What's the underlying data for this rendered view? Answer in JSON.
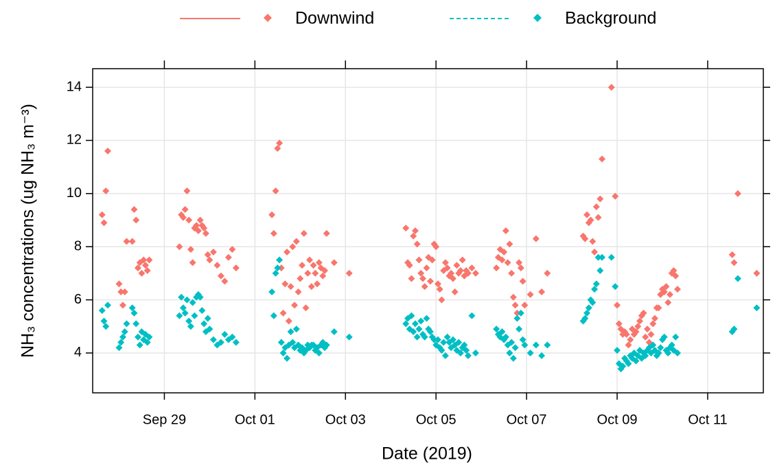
{
  "chart_data": {
    "type": "scatter",
    "xlabel": "Date (2019)",
    "ylabel": "NH₃ concentrations (ug NH₃ m⁻³)",
    "x": [
      "2019-09-27T15:00",
      "2019-09-27T16:00",
      "2019-09-27T17:00",
      "2019-09-27T18:00",
      "2019-09-28T00:00",
      "2019-09-28T01:00",
      "2019-09-28T02:00",
      "2019-09-28T03:00",
      "2019-09-28T04:00",
      "2019-09-28T07:00",
      "2019-09-28T08:00",
      "2019-09-28T09:00",
      "2019-09-28T10:00",
      "2019-09-28T11:00",
      "2019-09-28T12:00",
      "2019-09-28T13:00",
      "2019-09-28T14:00",
      "2019-09-28T15:00",
      "2019-09-28T16:00",
      "2019-09-29T08:00",
      "2019-09-29T09:00",
      "2019-09-29T10:00",
      "2019-09-29T11:00",
      "2019-09-29T12:00",
      "2019-09-29T13:00",
      "2019-09-29T14:00",
      "2019-09-29T15:00",
      "2019-09-29T16:00",
      "2019-09-29T17:00",
      "2019-09-29T18:00",
      "2019-09-29T19:00",
      "2019-09-29T20:00",
      "2019-09-29T21:00",
      "2019-09-29T22:00",
      "2019-09-29T23:00",
      "2019-09-30T00:00",
      "2019-09-30T02:00",
      "2019-09-30T04:00",
      "2019-09-30T06:00",
      "2019-09-30T08:00",
      "2019-09-30T10:00",
      "2019-09-30T12:00",
      "2019-09-30T14:00",
      "2019-10-01T09:00",
      "2019-10-01T10:00",
      "2019-10-01T11:00",
      "2019-10-01T12:00",
      "2019-10-01T13:00",
      "2019-10-01T14:00",
      "2019-10-01T15:00",
      "2019-10-01T16:00",
      "2019-10-01T17:00",
      "2019-10-01T18:00",
      "2019-10-01T19:00",
      "2019-10-01T20:00",
      "2019-10-01T21:00",
      "2019-10-01T22:00",
      "2019-10-01T23:00",
      "2019-10-02T00:00",
      "2019-10-02T01:00",
      "2019-10-02T02:00",
      "2019-10-02T03:00",
      "2019-10-02T04:00",
      "2019-10-02T05:00",
      "2019-10-02T06:00",
      "2019-10-02T07:00",
      "2019-10-02T08:00",
      "2019-10-02T09:00",
      "2019-10-02T10:00",
      "2019-10-02T11:00",
      "2019-10-02T12:00",
      "2019-10-02T13:00",
      "2019-10-02T14:00",
      "2019-10-02T18:00",
      "2019-10-03T02:00",
      "2019-10-04T08:00",
      "2019-10-04T09:00",
      "2019-10-04T10:00",
      "2019-10-04T11:00",
      "2019-10-04T12:00",
      "2019-10-04T13:00",
      "2019-10-04T14:00",
      "2019-10-04T15:00",
      "2019-10-04T16:00",
      "2019-10-04T17:00",
      "2019-10-04T18:00",
      "2019-10-04T19:00",
      "2019-10-04T20:00",
      "2019-10-04T21:00",
      "2019-10-04T22:00",
      "2019-10-04T23:00",
      "2019-10-05T00:00",
      "2019-10-05T01:00",
      "2019-10-05T02:00",
      "2019-10-05T03:00",
      "2019-10-05T04:00",
      "2019-10-05T05:00",
      "2019-10-05T06:00",
      "2019-10-05T07:00",
      "2019-10-05T08:00",
      "2019-10-05T09:00",
      "2019-10-05T10:00",
      "2019-10-05T11:00",
      "2019-10-05T12:00",
      "2019-10-05T13:00",
      "2019-10-05T14:00",
      "2019-10-05T15:00",
      "2019-10-05T16:00",
      "2019-10-05T17:00",
      "2019-10-05T19:00",
      "2019-10-05T21:00",
      "2019-10-06T08:00",
      "2019-10-06T09:00",
      "2019-10-06T10:00",
      "2019-10-06T11:00",
      "2019-10-06T12:00",
      "2019-10-06T13:00",
      "2019-10-06T14:00",
      "2019-10-06T15:00",
      "2019-10-06T16:00",
      "2019-10-06T17:00",
      "2019-10-06T18:00",
      "2019-10-06T19:00",
      "2019-10-06T20:00",
      "2019-10-06T21:00",
      "2019-10-06T22:00",
      "2019-10-06T23:00",
      "2019-10-07T02:00",
      "2019-10-07T05:00",
      "2019-10-07T08:00",
      "2019-10-07T11:00",
      "2019-10-08T06:00",
      "2019-10-08T07:00",
      "2019-10-08T08:00",
      "2019-10-08T09:00",
      "2019-10-08T10:00",
      "2019-10-08T11:00",
      "2019-10-08T12:00",
      "2019-10-08T13:00",
      "2019-10-08T14:00",
      "2019-10-08T15:00",
      "2019-10-08T16:00",
      "2019-10-08T21:00",
      "2019-10-08T23:00",
      "2019-10-09T00:00",
      "2019-10-09T01:00",
      "2019-10-09T02:00",
      "2019-10-09T03:00",
      "2019-10-09T04:00",
      "2019-10-09T05:00",
      "2019-10-09T06:00",
      "2019-10-09T07:00",
      "2019-10-09T08:00",
      "2019-10-09T09:00",
      "2019-10-09T10:00",
      "2019-10-09T11:00",
      "2019-10-09T12:00",
      "2019-10-09T13:00",
      "2019-10-09T14:00",
      "2019-10-09T15:00",
      "2019-10-09T16:00",
      "2019-10-09T17:00",
      "2019-10-09T18:00",
      "2019-10-09T19:00",
      "2019-10-09T20:00",
      "2019-10-09T21:00",
      "2019-10-09T22:00",
      "2019-10-09T23:00",
      "2019-10-10T00:00",
      "2019-10-10T01:00",
      "2019-10-10T02:00",
      "2019-10-10T03:00",
      "2019-10-10T04:00",
      "2019-10-10T05:00",
      "2019-10-10T06:00",
      "2019-10-10T07:00",
      "2019-10-10T08:00",
      "2019-10-11T13:00",
      "2019-10-11T14:00",
      "2019-10-11T16:00",
      "2019-10-12T02:00"
    ],
    "series": [
      {
        "name": "Downwind",
        "color": "#F8766D",
        "line_style": "solid",
        "values": [
          9.2,
          8.9,
          10.1,
          11.6,
          6.6,
          6.3,
          5.8,
          6.3,
          8.2,
          8.2,
          9.4,
          9.0,
          7.2,
          7.4,
          7.0,
          7.5,
          7.3,
          7.1,
          7.5,
          8.0,
          9.2,
          9.1,
          9.4,
          10.1,
          9.0,
          7.9,
          7.4,
          8.7,
          8.8,
          8.6,
          9.0,
          8.8,
          8.7,
          8.5,
          7.7,
          7.5,
          7.8,
          7.3,
          6.9,
          6.7,
          7.6,
          7.9,
          7.2,
          9.2,
          8.5,
          10.1,
          11.7,
          11.9,
          7.2,
          5.5,
          6.6,
          7.8,
          5.2,
          6.5,
          8.0,
          5.8,
          8.2,
          6.3,
          6.8,
          7.3,
          8.5,
          5.7,
          7.0,
          7.5,
          6.5,
          7.3,
          7.0,
          6.6,
          7.4,
          7.2,
          6.9,
          7.1,
          8.5,
          7.4,
          7.0,
          8.7,
          7.4,
          7.3,
          6.8,
          8.4,
          8.6,
          8.1,
          7.5,
          7.0,
          6.8,
          6.5,
          7.2,
          7.6,
          6.7,
          7.5,
          8.1,
          8.0,
          6.6,
          6.4,
          6.0,
          7.1,
          7.4,
          7.2,
          6.9,
          7.0,
          6.8,
          6.3,
          7.3,
          7.0,
          7.1,
          7.5,
          6.9,
          7.1,
          7.0,
          7.2,
          7.0,
          7.2,
          7.6,
          7.9,
          7.5,
          7.8,
          8.6,
          7.4,
          8.1,
          7.0,
          6.1,
          5.8,
          5.5,
          7.4,
          7.2,
          6.7,
          5.8,
          6.2,
          8.3,
          6.3,
          7.0,
          8.4,
          8.3,
          9.2,
          8.9,
          9.0,
          8.2,
          7.8,
          9.5,
          9.1,
          9.8,
          11.3,
          14.0,
          9.9,
          5.8,
          5.1,
          4.9,
          4.7,
          4.8,
          4.7,
          4.3,
          4.5,
          4.9,
          4.7,
          4.8,
          5.0,
          5.2,
          5.4,
          5.5,
          4.6,
          4.9,
          4.4,
          4.7,
          5.1,
          5.3,
          5.7,
          5.7,
          6.2,
          6.4,
          6.3,
          6.5,
          5.9,
          6.2,
          7.0,
          7.1,
          6.9,
          6.4,
          7.7,
          7.4,
          10.0,
          7.0
        ]
      },
      {
        "name": "Background",
        "color": "#00BFC4",
        "line_style": "dashed",
        "values": [
          5.6,
          5.2,
          5.0,
          5.8,
          4.2,
          4.4,
          4.6,
          4.8,
          5.1,
          5.7,
          5.5,
          5.1,
          4.6,
          4.3,
          4.8,
          4.5,
          4.7,
          4.4,
          4.6,
          5.4,
          6.1,
          5.7,
          5.5,
          6.0,
          5.2,
          5.0,
          5.9,
          5.4,
          6.1,
          6.2,
          6.1,
          5.6,
          5.1,
          4.8,
          5.3,
          4.9,
          4.5,
          4.3,
          4.4,
          4.7,
          4.5,
          4.6,
          4.4,
          6.3,
          5.4,
          7.0,
          7.2,
          7.5,
          4.4,
          4.0,
          4.2,
          3.8,
          4.3,
          4.8,
          4.4,
          4.2,
          4.9,
          4.3,
          4.1,
          4.2,
          4.0,
          4.1,
          4.3,
          4.2,
          4.3,
          4.3,
          4.1,
          4.2,
          4.0,
          4.3,
          4.4,
          4.2,
          4.3,
          4.8,
          4.6,
          5.1,
          5.3,
          4.9,
          5.4,
          4.8,
          5.1,
          4.6,
          4.9,
          5.2,
          4.7,
          4.6,
          5.3,
          4.9,
          4.8,
          4.6,
          4.5,
          4.3,
          4.5,
          4.2,
          4.1,
          4.4,
          3.9,
          4.6,
          4.4,
          4.2,
          4.5,
          4.3,
          4.1,
          4.4,
          4.0,
          4.2,
          4.3,
          4.1,
          3.9,
          5.4,
          4.0,
          4.9,
          4.7,
          4.6,
          4.8,
          4.5,
          4.6,
          4.3,
          4.0,
          4.4,
          3.8,
          4.2,
          5.3,
          4.9,
          5.5,
          4.5,
          4.3,
          4.0,
          4.3,
          3.9,
          4.3,
          5.2,
          5.3,
          5.5,
          5.7,
          6.0,
          5.9,
          6.4,
          6.6,
          7.6,
          7.1,
          7.6,
          7.6,
          6.5,
          4.1,
          3.6,
          3.4,
          3.5,
          3.8,
          3.7,
          3.6,
          3.9,
          3.8,
          4.0,
          3.7,
          3.9,
          4.1,
          3.8,
          4.0,
          3.9,
          4.1,
          4.2,
          4.0,
          4.3,
          4.1,
          3.9,
          4.0,
          4.2,
          4.5,
          4.6,
          4.1,
          4.0,
          4.2,
          4.3,
          4.1,
          4.6,
          4.0,
          4.8,
          4.9,
          6.8,
          5.7
        ]
      }
    ],
    "xlim": [
      "2019-09-27T10:00",
      "2019-10-12T05:30"
    ],
    "xticks": [
      {
        "value": "2019-09-29T00:00",
        "label": "Sep 29"
      },
      {
        "value": "2019-10-01T00:00",
        "label": "Oct 01"
      },
      {
        "value": "2019-10-03T00:00",
        "label": "Oct 03"
      },
      {
        "value": "2019-10-05T00:00",
        "label": "Oct 05"
      },
      {
        "value": "2019-10-07T00:00",
        "label": "Oct 07"
      },
      {
        "value": "2019-10-09T00:00",
        "label": "Oct 09"
      },
      {
        "value": "2019-10-11T00:00",
        "label": "Oct 11"
      }
    ],
    "ylim": [
      2.5,
      14.7
    ],
    "yticks": [
      4,
      6,
      8,
      10,
      12,
      14
    ],
    "grid": true,
    "legend": "top"
  }
}
